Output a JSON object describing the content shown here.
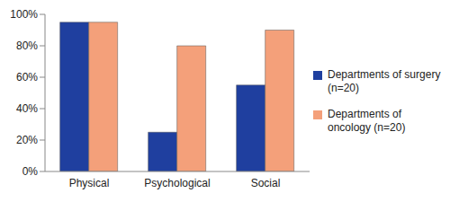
{
  "chart_data": {
    "type": "bar",
    "categories": [
      "Physical",
      "Psychological",
      "Social"
    ],
    "series": [
      {
        "name": "Departments of surgery (n=20)",
        "color": "#1f3f9f",
        "values": [
          95,
          25,
          55
        ]
      },
      {
        "name": "Departments of oncology (n=20)",
        "color": "#f4a07a",
        "values": [
          95,
          80,
          90
        ]
      }
    ],
    "ylim": [
      0,
      100
    ],
    "yticks": [
      {
        "value": 0,
        "label": "0%"
      },
      {
        "value": 20,
        "label": "20%"
      },
      {
        "value": 40,
        "label": "40%"
      },
      {
        "value": 60,
        "label": "60%"
      },
      {
        "value": 80,
        "label": "80%"
      },
      {
        "value": 100,
        "label": "100%"
      }
    ],
    "grid": false,
    "legend": "right"
  }
}
